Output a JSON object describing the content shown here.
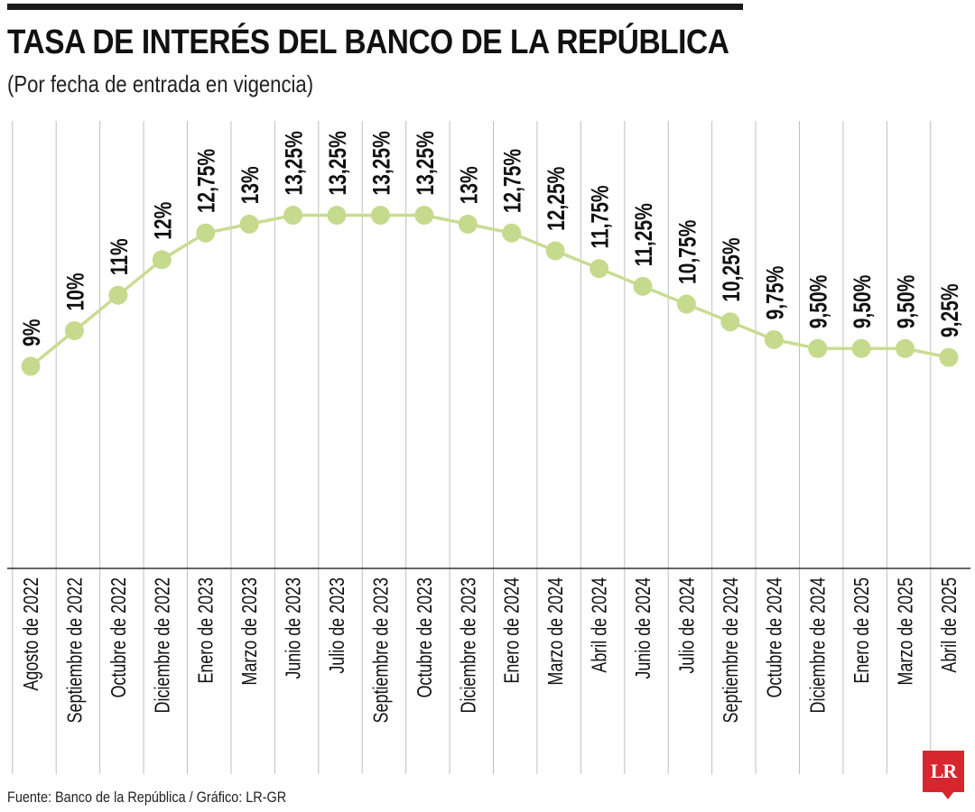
{
  "header": {
    "title": "TASA DE INTERÉS DEL BANCO DE LA REPÚBLICA",
    "subtitle": "(Por fecha de entrada en vigencia)"
  },
  "footer": {
    "source": "Fuente: Banco de la República / Gráfico: LR-GR",
    "logo_text": "LR"
  },
  "colors": {
    "line": "#c9dc93",
    "marker": "#c6da8d",
    "grid": "#bfbfbf",
    "axis": "#333333",
    "text": "#111111",
    "logo": "#d8262f"
  },
  "chart_data": {
    "type": "line",
    "title": "TASA DE INTERÉS DEL BANCO DE LA REPÚBLICA",
    "subtitle": "(Por fecha de entrada en vigencia)",
    "categories": [
      "Agosto de 2022",
      "Septiembre de 2022",
      "Octubre de 2022",
      "Diciembre de 2022",
      "Enero de 2023",
      "Marzo de 2023",
      "Junio de 2023",
      "Julio de 2023",
      "Septiembre de 2023",
      "Octubre de 2023",
      "Diciembre de 2023",
      "Enero de 2024",
      "Marzo de 2024",
      "Abril de 2024",
      "Junio de 2024",
      "Julio de 2024",
      "Septiembre de 2024",
      "Octubre de 2024",
      "Diciembre de 2024",
      "Enero de 2025",
      "Marzo de 2025",
      "Abril de 2025"
    ],
    "values": [
      9,
      10,
      11,
      12,
      12.75,
      13,
      13.25,
      13.25,
      13.25,
      13.25,
      13,
      12.75,
      12.25,
      11.75,
      11.25,
      10.75,
      10.25,
      9.75,
      9.5,
      9.5,
      9.5,
      9.25
    ],
    "data_labels": [
      "9%",
      "10%",
      "11%",
      "12%",
      "12,75%",
      "13%",
      "13,25%",
      "13,25%",
      "13,25%",
      "13,25%",
      "13%",
      "12,75%",
      "12,25%",
      "11,75%",
      "11,25%",
      "10,75%",
      "10,25%",
      "9,75%",
      "9,50%",
      "9,50%",
      "9,50%",
      "9,25%"
    ],
    "grid": "vertical",
    "legend": "none"
  }
}
